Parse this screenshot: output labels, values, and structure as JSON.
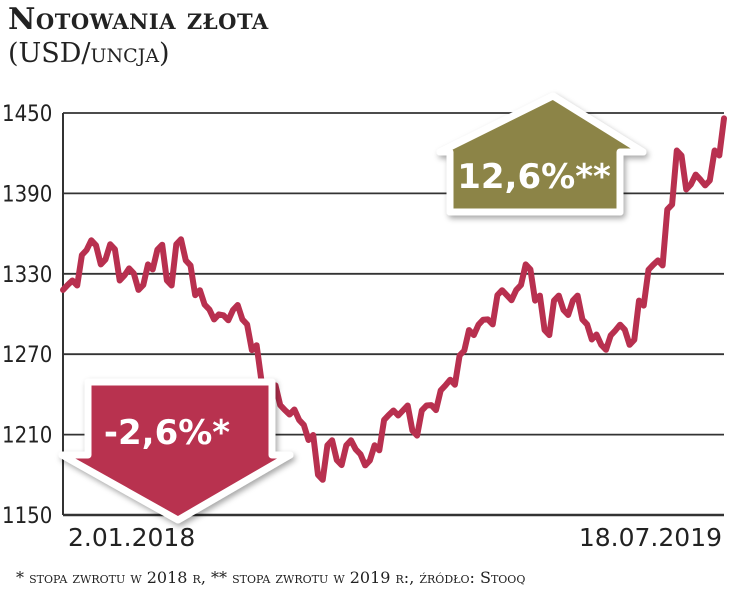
{
  "chart_data": {
    "type": "line",
    "title": "Notowania złota",
    "subtitle": "(USD/uncja)",
    "ylim": [
      1150,
      1450
    ],
    "yticks": [
      1450,
      1390,
      1330,
      1270,
      1210,
      1150
    ],
    "x_labels": [
      "2.01.2018",
      "18.07.2019"
    ],
    "grid": true,
    "series": [
      {
        "color": "#b8304f",
        "values": [
          1318,
          1325,
          1344,
          1355,
          1337,
          1352,
          1325,
          1334,
          1318,
          1337,
          1348,
          1325,
          1352,
          1340,
          1314,
          1307,
          1296,
          1299,
          1303,
          1296,
          1273,
          1251,
          1243,
          1232,
          1225,
          1221,
          1206,
          1180,
          1202,
          1191,
          1202,
          1199,
          1187,
          1202,
          1221,
          1228,
          1228,
          1213,
          1228,
          1232,
          1243,
          1251,
          1269,
          1288,
          1292,
          1296,
          1314,
          1314,
          1318,
          1337,
          1310,
          1288,
          1310,
          1303,
          1310,
          1296,
          1281,
          1277,
          1284,
          1292,
          1277,
          1310,
          1333,
          1340,
          1378,
          1422,
          1393,
          1404,
          1396,
          1422,
          1446
        ]
      }
    ],
    "annotations": [
      {
        "text": "-2,6%*",
        "direction": "down",
        "color": "#b8304f"
      },
      {
        "text": "12,6%**",
        "direction": "up",
        "color": "#8c8446"
      }
    ],
    "footnote": "* stopa zwrotu w 2018 r, ** stopa zwrotu w 2019 r:, źródło: Stooq"
  }
}
